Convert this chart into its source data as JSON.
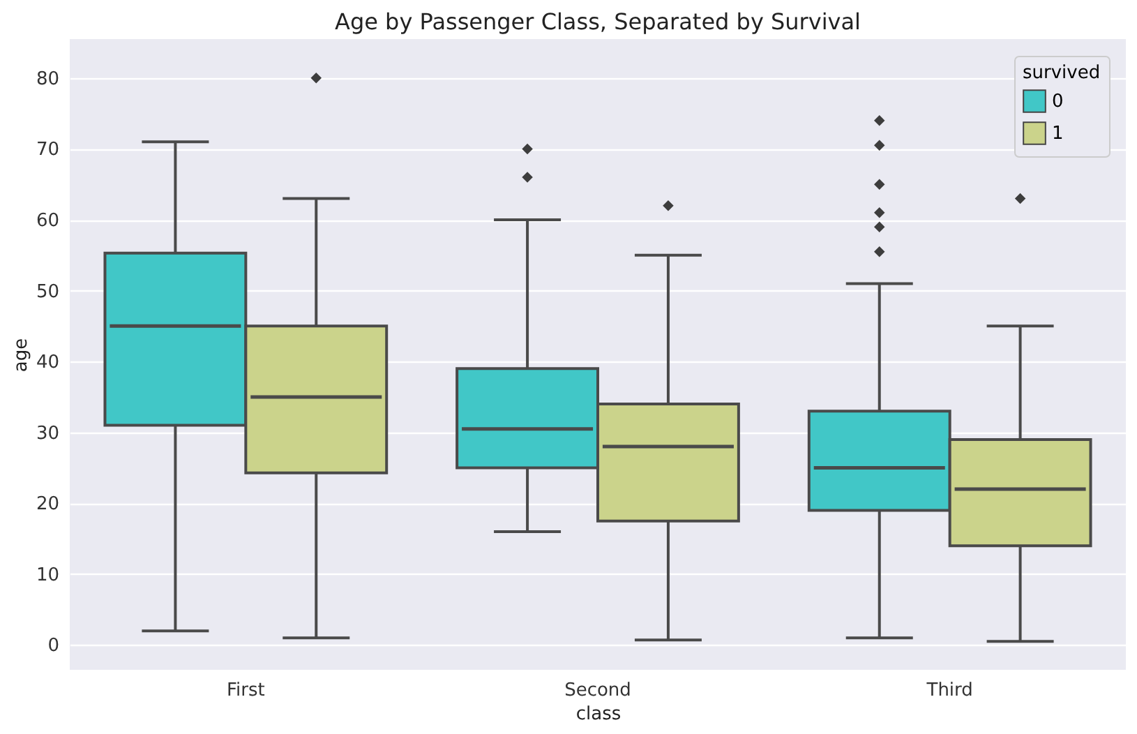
{
  "chart_data": {
    "type": "box",
    "title": "Age by Passenger Class, Separated by Survival",
    "xlabel": "class",
    "ylabel": "age",
    "legend_title": "survived",
    "legend": "top right",
    "grid": "y",
    "marker": "diamond",
    "categories": [
      "First",
      "Second",
      "Third"
    ],
    "ylim": [
      -3.5,
      85.5
    ],
    "yticks": [
      0,
      10,
      20,
      30,
      40,
      50,
      60,
      70,
      80
    ],
    "series": [
      {
        "name": "0",
        "color": "#41c7c7",
        "boxes": [
          {
            "low": 2,
            "q1": 31,
            "median": 45,
            "q3": 55.3,
            "high": 71
          },
          {
            "low": 16,
            "q1": 25,
            "median": 30.5,
            "q3": 39,
            "high": 60,
            "outliers": [
              66,
              70
            ]
          },
          {
            "low": 1,
            "q1": 19,
            "median": 25,
            "q3": 33,
            "high": 51,
            "outliers": [
              55.5,
              59,
              61,
              65,
              70.5,
              74
            ]
          }
        ]
      },
      {
        "name": "1",
        "color": "#cbd38b",
        "boxes": [
          {
            "low": 1,
            "q1": 24.3,
            "median": 35,
            "q3": 45,
            "high": 63,
            "outliers": [
              80
            ]
          },
          {
            "low": 0.7,
            "q1": 17.5,
            "median": 28,
            "q3": 34,
            "high": 55,
            "outliers": [
              62
            ]
          },
          {
            "low": 0.5,
            "q1": 14,
            "median": 22,
            "q3": 29,
            "high": 45,
            "outliers": [
              63
            ]
          }
        ]
      }
    ]
  }
}
